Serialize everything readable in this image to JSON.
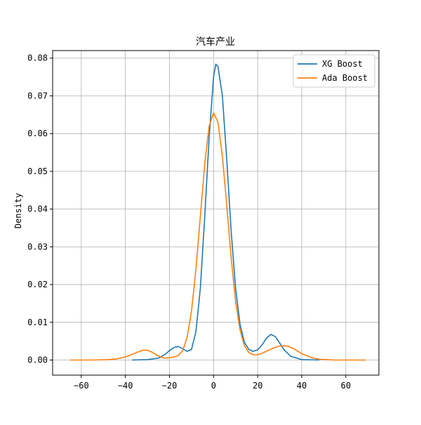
{
  "chart_data": {
    "type": "line",
    "title": "汽车产业",
    "xlabel": "",
    "ylabel": "Density",
    "xlim": [
      -73,
      75
    ],
    "ylim": [
      -0.004,
      0.082
    ],
    "x_ticks": [
      -60,
      -40,
      -20,
      0,
      20,
      40,
      60
    ],
    "x_tick_labels": [
      "−60",
      "−40",
      "−20",
      "0",
      "20",
      "40",
      "60"
    ],
    "y_ticks": [
      0.0,
      0.01,
      0.02,
      0.03,
      0.04,
      0.05,
      0.06,
      0.07,
      0.08
    ],
    "y_tick_labels": [
      "0.00",
      "0.01",
      "0.02",
      "0.03",
      "0.04",
      "0.05",
      "0.06",
      "0.07",
      "0.08"
    ],
    "grid": true,
    "legend": "top-right",
    "series": [
      {
        "name": "XG Boost",
        "color": "#1f77b4",
        "x": [
          -37,
          -30,
          -25,
          -22,
          -20,
          -18,
          -16,
          -14,
          -12,
          -10,
          -8,
          -6,
          -4,
          -2,
          0,
          1,
          2,
          4,
          6,
          8,
          10,
          12,
          14,
          16,
          18,
          20,
          22,
          24,
          26,
          28,
          30,
          32,
          35,
          40,
          48
        ],
        "y": [
          0.0,
          0.0001,
          0.0005,
          0.0015,
          0.0025,
          0.0033,
          0.0036,
          0.003,
          0.0023,
          0.0028,
          0.0075,
          0.019,
          0.038,
          0.059,
          0.075,
          0.0784,
          0.0778,
          0.07,
          0.053,
          0.034,
          0.019,
          0.0095,
          0.0047,
          0.0028,
          0.0023,
          0.0027,
          0.004,
          0.0058,
          0.0068,
          0.0062,
          0.0045,
          0.0027,
          0.001,
          0.0001,
          0.0
        ]
      },
      {
        "name": "Ada Boost",
        "color": "#ff7f0e",
        "x": [
          -65,
          -55,
          -48,
          -44,
          -40,
          -37,
          -34,
          -32,
          -30,
          -28,
          -26,
          -24,
          -22,
          -20,
          -18,
          -16,
          -14,
          -12,
          -10,
          -8,
          -6,
          -4,
          -2,
          0,
          2,
          4,
          6,
          8,
          10,
          12,
          14,
          16,
          18,
          20,
          22,
          25,
          28,
          30,
          32,
          34,
          36,
          38,
          40,
          44,
          48,
          55,
          62,
          69
        ],
        "y": [
          0.0,
          0.0,
          0.0001,
          0.0003,
          0.0008,
          0.0015,
          0.0022,
          0.0026,
          0.0026,
          0.0021,
          0.0014,
          0.0008,
          0.0005,
          0.0006,
          0.0008,
          0.0012,
          0.0025,
          0.006,
          0.013,
          0.024,
          0.038,
          0.052,
          0.062,
          0.0655,
          0.063,
          0.054,
          0.041,
          0.027,
          0.0155,
          0.008,
          0.0038,
          0.002,
          0.0014,
          0.0014,
          0.0018,
          0.0026,
          0.0034,
          0.0037,
          0.0038,
          0.0036,
          0.0031,
          0.0024,
          0.0017,
          0.0007,
          0.0002,
          0.0,
          0.0,
          0.0
        ]
      }
    ]
  }
}
